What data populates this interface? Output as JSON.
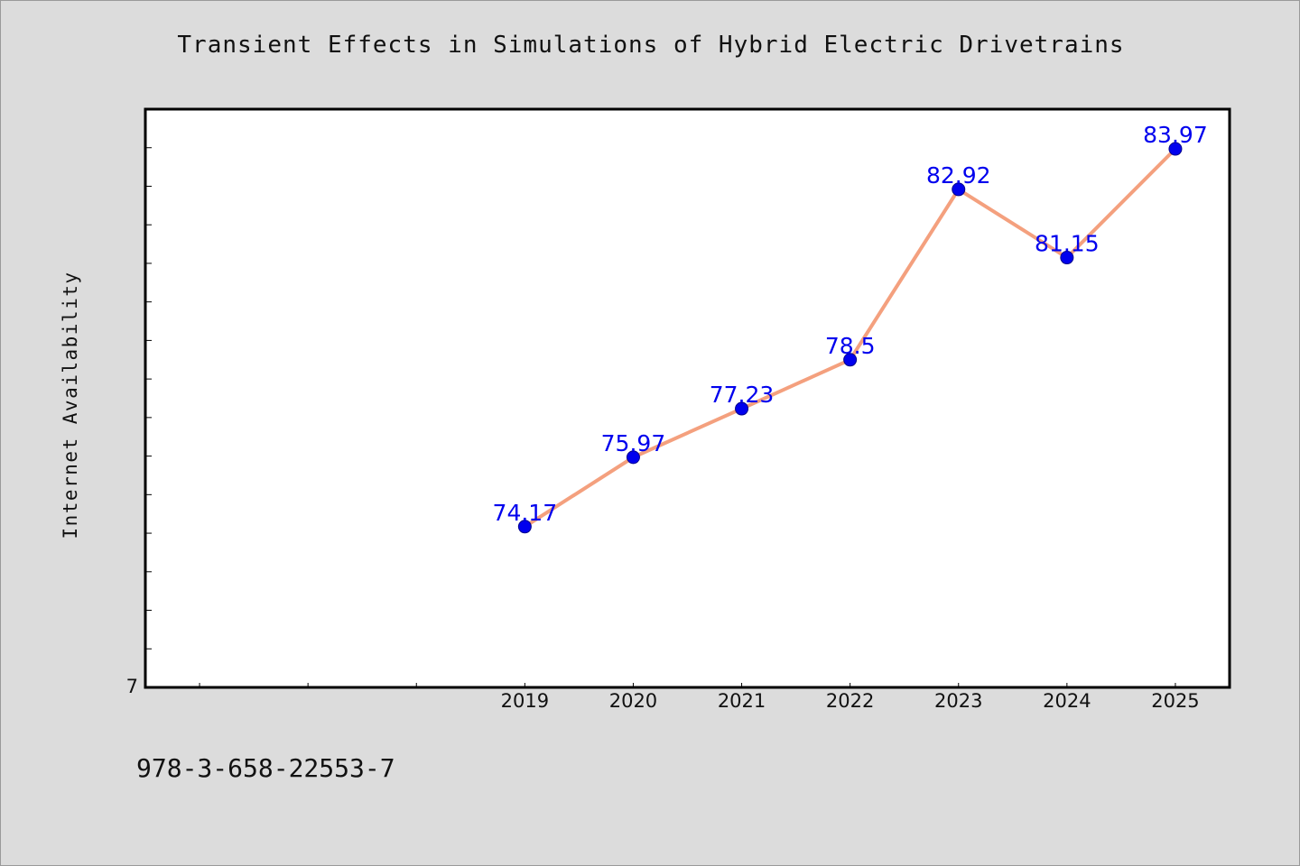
{
  "chart_data": {
    "type": "line",
    "title": "Transient Effects in Simulations of Hybrid Electric Drivetrains",
    "xlabel": "",
    "ylabel": "Internet Availability",
    "x": [
      "2019",
      "2020",
      "2021",
      "2022",
      "2023",
      "2024",
      "2025"
    ],
    "series": [
      {
        "values": [
          74.17,
          75.97,
          77.23,
          78.5,
          82.92,
          81.15,
          83.97
        ],
        "data_labels": [
          "74.17",
          "75.97",
          "77.23",
          "78.5",
          "82.92",
          "81.15",
          "83.97"
        ]
      }
    ],
    "x_axis_extent_years": [
      2015.5,
      2025.5
    ],
    "ylim": [
      70,
      85
    ],
    "y_tick_labels": [
      "7"
    ],
    "grid": false,
    "legend": "none",
    "colors": {
      "line": "#f4a07e",
      "marker": "#0000ee",
      "marker_edge": "#00008b",
      "data_label": "#0000ee",
      "plot_background": "#ffffff",
      "page_background": "#dcdcdc"
    }
  },
  "footer": {
    "isbn": "978-3-658-22553-7"
  }
}
